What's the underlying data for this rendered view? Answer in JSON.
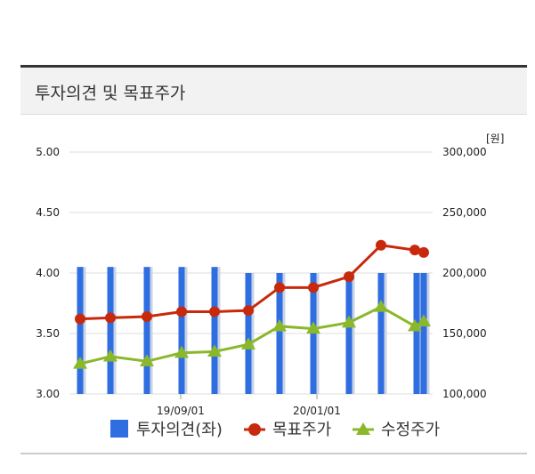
{
  "section": {
    "title": "투자의견 및 목표주가"
  },
  "chart_data": {
    "type": "bar+line",
    "right_axis_unit": "[원]",
    "left_axis": {
      "ylim": [
        3.0,
        5.0
      ],
      "ticks": [
        "5.00",
        "4.50",
        "4.00",
        "3.50",
        "3.00"
      ]
    },
    "right_axis": {
      "ylim": [
        100000,
        300000
      ],
      "ticks": [
        "300,000",
        "250,000",
        "200,000",
        "150,000",
        "100,000"
      ]
    },
    "x_tick_labels": [
      "19/09/01",
      "20/01/01"
    ],
    "legend": [
      "투자의견(좌)",
      "목표주가",
      "수정주가"
    ],
    "colors": {
      "opinion": "#2f6ee0",
      "target": "#c8290c",
      "adjusted": "#8ab82a",
      "grid": "#dddddd"
    },
    "series": [
      {
        "name": "투자의견(좌)",
        "axis": "left",
        "values": [
          4.05,
          4.05,
          4.05,
          4.05,
          4.05,
          4.0,
          4.0,
          4.0,
          4.0,
          4.0,
          4.0,
          4.0
        ]
      },
      {
        "name": "목표주가",
        "axis": "right",
        "values": [
          162000,
          163000,
          164000,
          168000,
          168000,
          169000,
          188000,
          188000,
          197000,
          223000,
          219000,
          217000
        ]
      },
      {
        "name": "수정주가",
        "axis": "right",
        "values": [
          125000,
          131000,
          127000,
          134000,
          135000,
          141000,
          156000,
          154000,
          159000,
          172000,
          156000,
          160000
        ]
      }
    ]
  }
}
